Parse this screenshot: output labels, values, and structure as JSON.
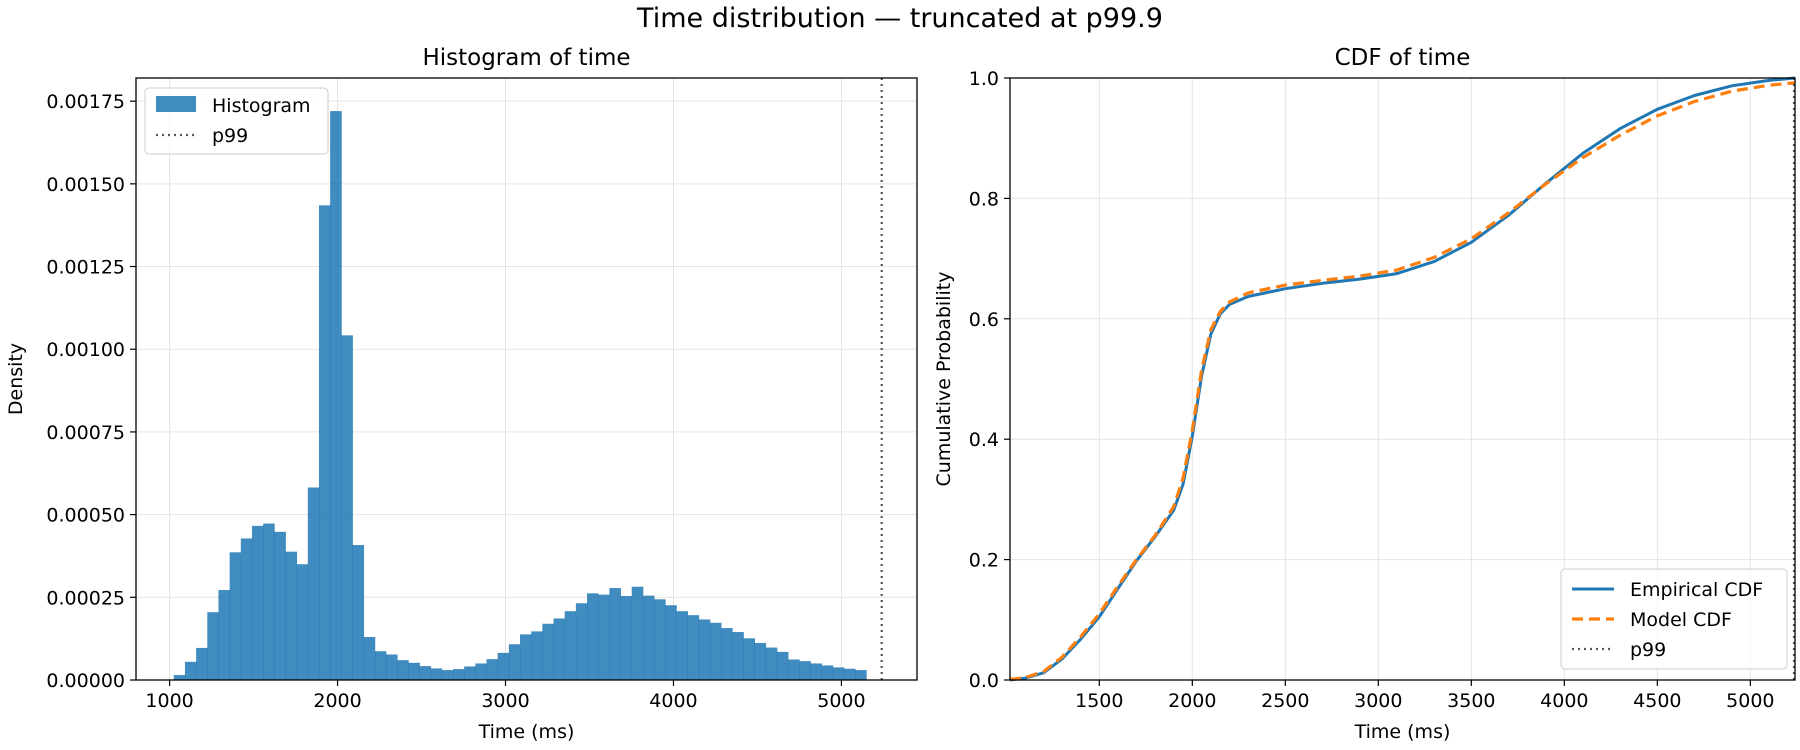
{
  "figure": {
    "suptitle": "Time distribution — truncated at p99.9"
  },
  "chart_data": [
    {
      "type": "bar",
      "title": "Histogram of time",
      "xlabel": "Time (ms)",
      "ylabel": "Density",
      "xlim": [
        800,
        5450
      ],
      "ylim": [
        0,
        0.00182
      ],
      "xticks": [
        1000,
        2000,
        3000,
        4000,
        5000
      ],
      "yticks": [
        0.0,
        0.00025,
        0.0005,
        0.00075,
        0.001,
        0.00125,
        0.0015,
        0.00175
      ],
      "ytick_labels": [
        "0.00000",
        "0.00025",
        "0.00050",
        "0.00075",
        "0.00100",
        "0.00125",
        "0.00150",
        "0.00175"
      ],
      "grid": true,
      "legend": {
        "placement": "upper left",
        "entries": [
          "Histogram",
          "p99"
        ]
      },
      "color": "#1f77b4",
      "bin_start": 1025,
      "bin_width": 66.5,
      "values": [
        1.5e-05,
        5.5e-05,
        9.7e-05,
        0.000205,
        0.000272,
        0.000386,
        0.000428,
        0.000466,
        0.000473,
        0.000448,
        0.000388,
        0.00035,
        0.000582,
        0.001435,
        0.00172,
        0.001042,
        0.000408,
        0.00013,
        8.7e-05,
        7.7e-05,
        6e-05,
        5.2e-05,
        4.2e-05,
        3.5e-05,
        3e-05,
        3.3e-05,
        4.1e-05,
        5e-05,
        6.3e-05,
        8.2e-05,
        0.000108,
        0.000138,
        0.000147,
        0.00017,
        0.000186,
        0.000208,
        0.000232,
        0.000262,
        0.000258,
        0.000278,
        0.000254,
        0.000282,
        0.000255,
        0.000244,
        0.000226,
        0.000208,
        0.000196,
        0.000183,
        0.000173,
        0.000157,
        0.000145,
        0.000126,
        0.000112,
        9.8e-05,
        8.5e-05,
        6.2e-05,
        5.7e-05,
        5e-05,
        4.4e-05,
        3.8e-05,
        3.4e-05,
        3e-05
      ],
      "p99": 5240
    },
    {
      "type": "line",
      "title": "CDF of time",
      "xlabel": "Time (ms)",
      "ylabel": "Cumulative Probability",
      "xlim": [
        1020,
        5240
      ],
      "ylim": [
        0,
        1
      ],
      "xticks": [
        1500,
        2000,
        2500,
        3000,
        3500,
        4000,
        4500,
        5000
      ],
      "yticks": [
        0.0,
        0.2,
        0.4,
        0.6,
        0.8,
        1.0
      ],
      "ytick_labels": [
        "0.0",
        "0.2",
        "0.4",
        "0.6",
        "0.8",
        "1.0"
      ],
      "grid": true,
      "legend": {
        "placement": "lower right",
        "entries": [
          "Empirical CDF",
          "Model CDF",
          "p99"
        ]
      },
      "series": [
        {
          "name": "Empirical CDF",
          "color": "#1f77b4",
          "style": "solid",
          "x": [
            1020,
            1100,
            1200,
            1300,
            1400,
            1500,
            1600,
            1700,
            1800,
            1900,
            1950,
            2000,
            2050,
            2100,
            2150,
            2200,
            2300,
            2500,
            2700,
            2900,
            3100,
            3300,
            3500,
            3700,
            3900,
            4100,
            4300,
            4500,
            4700,
            4900,
            5100,
            5240
          ],
          "y": [
            0.0,
            0.003,
            0.012,
            0.035,
            0.068,
            0.105,
            0.152,
            0.198,
            0.238,
            0.282,
            0.325,
            0.405,
            0.505,
            0.575,
            0.608,
            0.624,
            0.637,
            0.65,
            0.659,
            0.666,
            0.675,
            0.695,
            0.727,
            0.772,
            0.825,
            0.875,
            0.916,
            0.948,
            0.971,
            0.987,
            0.996,
            1.0
          ]
        },
        {
          "name": "Model CDF",
          "color": "#ff7f0e",
          "style": "dashed",
          "x": [
            1020,
            1100,
            1200,
            1300,
            1400,
            1500,
            1600,
            1700,
            1800,
            1900,
            1950,
            2000,
            2050,
            2100,
            2150,
            2200,
            2300,
            2500,
            2700,
            2900,
            3100,
            3300,
            3500,
            3700,
            3900,
            4100,
            4300,
            4500,
            4700,
            4900,
            5100,
            5240
          ],
          "y": [
            0.001,
            0.004,
            0.014,
            0.038,
            0.072,
            0.11,
            0.156,
            0.2,
            0.24,
            0.288,
            0.335,
            0.415,
            0.515,
            0.582,
            0.612,
            0.628,
            0.643,
            0.656,
            0.664,
            0.671,
            0.681,
            0.702,
            0.733,
            0.776,
            0.824,
            0.868,
            0.905,
            0.937,
            0.961,
            0.978,
            0.988,
            0.992
          ]
        }
      ],
      "p99": 5240
    }
  ]
}
